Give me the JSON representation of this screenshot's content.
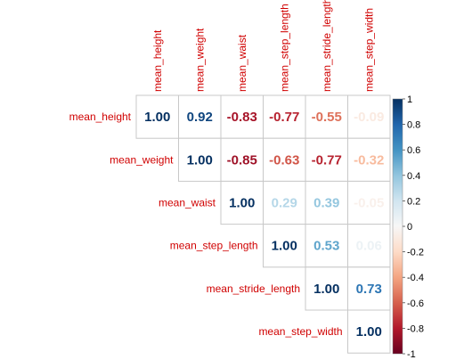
{
  "chart_data": {
    "type": "heatmap",
    "variables": [
      "mean_height",
      "mean_weight",
      "mean_waist",
      "mean_step_length",
      "mean_stride_length",
      "mean_step_width"
    ],
    "matrix_upper": [
      [
        "1.00",
        "0.92",
        "-0.83",
        "-0.77",
        "-0.55",
        "-0.09"
      ],
      [
        "1.00",
        "-0.85",
        "-0.63",
        "-0.77",
        "-0.32"
      ],
      [
        "1.00",
        "0.29",
        "0.39",
        "-0.05"
      ],
      [
        "1.00",
        "0.53",
        "0.06"
      ],
      [
        "1.00",
        "0.73"
      ],
      [
        "1.00"
      ]
    ],
    "colorbar": {
      "min": -1,
      "max": 1,
      "tick_labels": [
        "1",
        "0.8",
        "0.6",
        "0.4",
        "0.2",
        "0",
        "-0.2",
        "-0.4",
        "-0.6",
        "-0.8",
        "-1"
      ]
    },
    "label_color": "#d00000",
    "grid": true
  }
}
